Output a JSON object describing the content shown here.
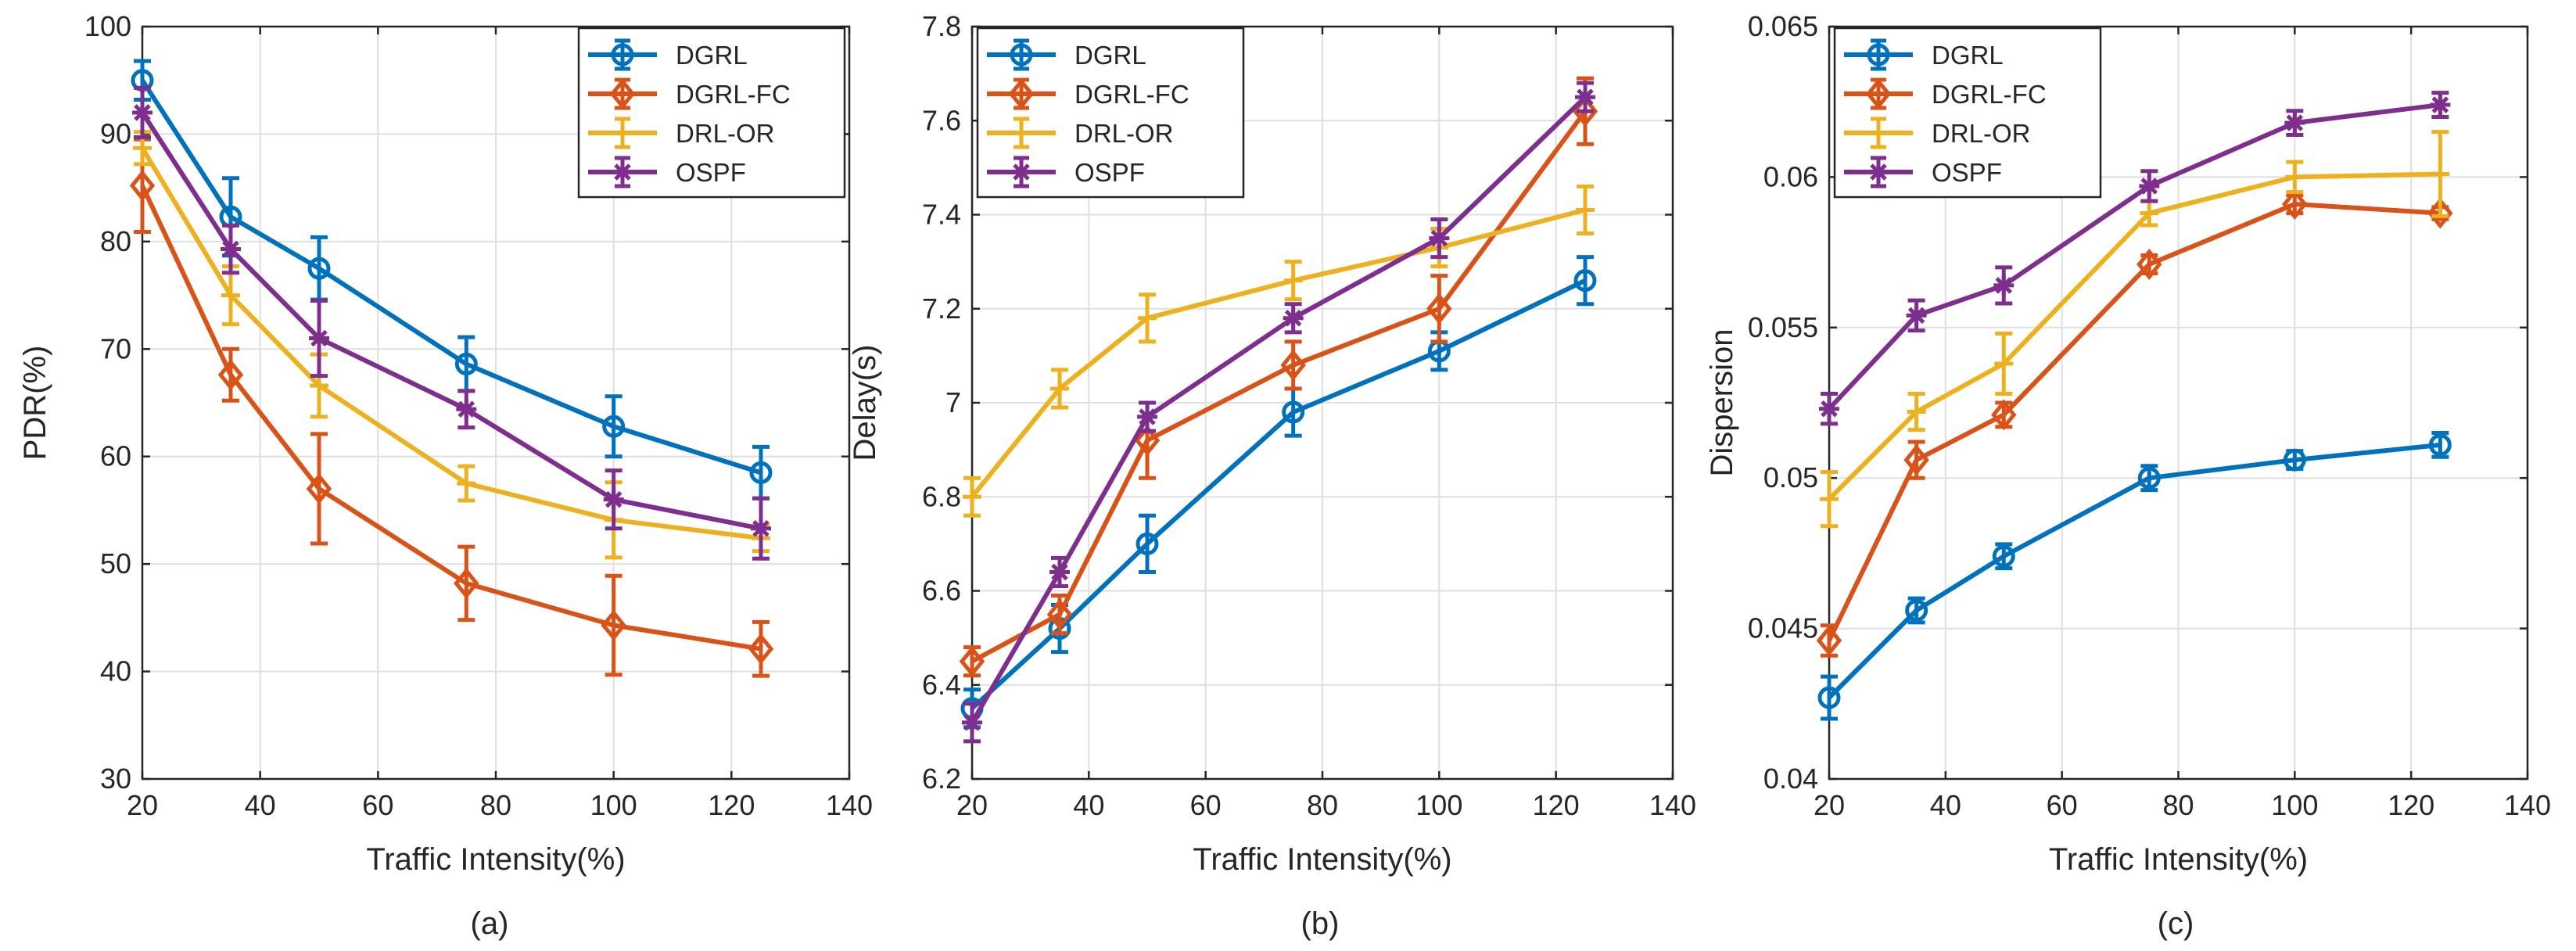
{
  "figure": {
    "colors": {
      "DGRL": "#0072bd",
      "DGRL-FC": "#d95319",
      "DRL-OR": "#edb120",
      "OSPF": "#7e2f8e",
      "grid": "#dfdfdf",
      "axis": "#262626"
    },
    "markers": {
      "DGRL": "circle",
      "DGRL-FC": "diamond",
      "DRL-OR": "bar",
      "OSPF": "star"
    }
  },
  "chart_data": [
    {
      "type": "line",
      "caption": "(a)",
      "xlabel": "Traffic Intensity(%)",
      "ylabel": "PDR(%)",
      "xlim": [
        20,
        140
      ],
      "ylim": [
        30,
        100
      ],
      "xticks": [
        20,
        40,
        60,
        80,
        100,
        120,
        140
      ],
      "yticks": [
        30,
        40,
        50,
        60,
        70,
        80,
        90,
        100
      ],
      "xtick_labels": [
        "20",
        "40",
        "60",
        "80",
        "100",
        "120",
        "140"
      ],
      "ytick_labels": [
        "30",
        "40",
        "50",
        "60",
        "70",
        "80",
        "90",
        "100"
      ],
      "grid": true,
      "legend_position": "top-right",
      "x": [
        20,
        35,
        50,
        75,
        100,
        125
      ],
      "series": [
        {
          "name": "DGRL",
          "values": [
            95.0,
            82.3,
            77.5,
            68.6,
            62.8,
            58.5
          ],
          "errors": [
            1.8,
            3.6,
            2.9,
            2.5,
            2.8,
            2.4
          ]
        },
        {
          "name": "DGRL-FC",
          "values": [
            85.2,
            67.6,
            57.0,
            48.2,
            44.3,
            42.1
          ],
          "errors": [
            4.3,
            2.4,
            5.1,
            3.4,
            4.6,
            2.5
          ]
        },
        {
          "name": "DRL-OR",
          "values": [
            88.7,
            75.0,
            66.6,
            57.5,
            54.1,
            52.4
          ],
          "errors": [
            1.5,
            2.7,
            2.9,
            1.6,
            3.5,
            1.2
          ]
        },
        {
          "name": "OSPF",
          "values": [
            92.0,
            79.3,
            71.0,
            64.4,
            56.0,
            53.3
          ],
          "errors": [
            2.3,
            2.2,
            3.5,
            1.7,
            2.7,
            2.8
          ]
        }
      ]
    },
    {
      "type": "line",
      "caption": "(b)",
      "xlabel": "Traffic Intensity(%)",
      "ylabel": "Delay(s)",
      "xlim": [
        20,
        140
      ],
      "ylim": [
        6.2,
        7.8
      ],
      "xticks": [
        20,
        40,
        60,
        80,
        100,
        120,
        140
      ],
      "yticks": [
        6.2,
        6.4,
        6.6,
        6.8,
        7.0,
        7.2,
        7.4,
        7.6,
        7.8
      ],
      "xtick_labels": [
        "20",
        "40",
        "60",
        "80",
        "100",
        "120",
        "140"
      ],
      "ytick_labels": [
        "6.2",
        "6.4",
        "6.6",
        "6.8",
        "7",
        "7.2",
        "7.4",
        "7.6",
        "7.8"
      ],
      "grid": true,
      "legend_position": "top-left",
      "x": [
        20,
        35,
        50,
        75,
        100,
        125
      ],
      "series": [
        {
          "name": "DGRL",
          "values": [
            6.35,
            6.52,
            6.7,
            6.98,
            7.11,
            7.26
          ],
          "errors": [
            0.04,
            0.05,
            0.06,
            0.05,
            0.04,
            0.05
          ]
        },
        {
          "name": "DGRL-FC",
          "values": [
            6.45,
            6.55,
            6.92,
            7.08,
            7.2,
            7.62
          ],
          "errors": [
            0.03,
            0.04,
            0.08,
            0.05,
            0.07,
            0.07
          ]
        },
        {
          "name": "DRL-OR",
          "values": [
            6.8,
            7.03,
            7.18,
            7.26,
            7.33,
            7.41
          ],
          "errors": [
            0.04,
            0.04,
            0.05,
            0.04,
            0.04,
            0.05
          ]
        },
        {
          "name": "OSPF",
          "values": [
            6.32,
            6.64,
            6.97,
            7.18,
            7.35,
            7.65
          ],
          "errors": [
            0.04,
            0.03,
            0.03,
            0.03,
            0.04,
            0.03
          ]
        }
      ]
    },
    {
      "type": "line",
      "caption": "(c)",
      "xlabel": "Traffic Intensity(%)",
      "ylabel": "Dispersion",
      "xlim": [
        20,
        140
      ],
      "ylim": [
        0.04,
        0.065
      ],
      "xticks": [
        20,
        40,
        60,
        80,
        100,
        120,
        140
      ],
      "yticks": [
        0.04,
        0.045,
        0.05,
        0.055,
        0.06,
        0.065
      ],
      "xtick_labels": [
        "20",
        "40",
        "60",
        "80",
        "100",
        "120",
        "140"
      ],
      "ytick_labels": [
        "0.04",
        "0.045",
        "0.05",
        "0.055",
        "0.06",
        "0.065"
      ],
      "grid": true,
      "legend_position": "top-left",
      "x": [
        20,
        35,
        50,
        75,
        100,
        125
      ],
      "series": [
        {
          "name": "DGRL",
          "values": [
            0.0427,
            0.0456,
            0.0474,
            0.05,
            0.0506,
            0.0511
          ],
          "errors": [
            0.0007,
            0.0004,
            0.0004,
            0.0004,
            0.0003,
            0.0004
          ]
        },
        {
          "name": "DGRL-FC",
          "values": [
            0.0446,
            0.0506,
            0.0521,
            0.0571,
            0.0591,
            0.0588
          ],
          "errors": [
            0.0005,
            0.0006,
            0.0004,
            0.0003,
            0.0003,
            0.0002
          ]
        },
        {
          "name": "DRL-OR",
          "values": [
            0.0493,
            0.0522,
            0.0538,
            0.0588,
            0.06,
            0.0601
          ],
          "errors": [
            0.0009,
            0.0006,
            0.001,
            0.0004,
            0.0005,
            0.0014
          ]
        },
        {
          "name": "OSPF",
          "values": [
            0.0523,
            0.0554,
            0.0564,
            0.0597,
            0.0618,
            0.0624
          ],
          "errors": [
            0.0005,
            0.0005,
            0.0006,
            0.0005,
            0.0004,
            0.0004
          ]
        }
      ]
    }
  ]
}
